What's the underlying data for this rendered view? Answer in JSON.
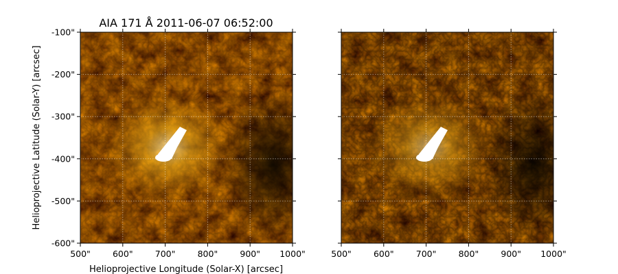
{
  "figure": {
    "title": "AIA 171 Å 2011-06-07 06:52:00",
    "xlabel": "Helioprojective Longitude (Solar-X) [arcsec]",
    "ylabel": "Helioprojective Latitude (Solar-Y) [arcsec]",
    "x_ticks": [
      "500\"",
      "600\"",
      "700\"",
      "800\"",
      "900\"",
      "1000\""
    ],
    "y_ticks": [
      "-100\"",
      "-200\"",
      "-300\"",
      "-400\"",
      "-500\"",
      "-600\""
    ],
    "x_range": [
      500,
      1000
    ],
    "y_range": [
      -600,
      -100
    ],
    "grid": true,
    "colormap": [
      "#000000",
      "#3a2600",
      "#7a5200",
      "#c08000",
      "#f0a800",
      "#ffd040",
      "#ffffff"
    ]
  }
}
